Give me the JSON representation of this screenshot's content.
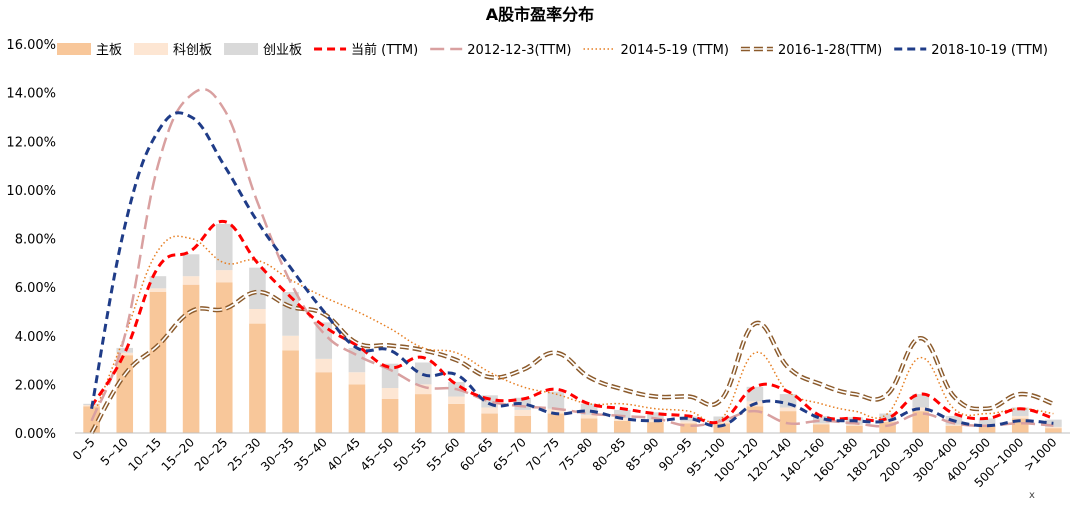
{
  "chart_data": {
    "type": "bar",
    "title": "A股市盈率分布",
    "xlabel": "",
    "ylabel": "",
    "ylim": [
      0,
      16
    ],
    "yticks": [
      "0.00%",
      "2.00%",
      "4.00%",
      "6.00%",
      "8.00%",
      "10.00%",
      "12.00%",
      "14.00%",
      "16.00%"
    ],
    "ytick_values": [
      0,
      2,
      4,
      6,
      8,
      10,
      12,
      14,
      16
    ],
    "grid": false,
    "legend_position": "top",
    "note": "x",
    "categories": [
      "0~5",
      "5~10",
      "10~15",
      "15~20",
      "20~25",
      "25~30",
      "30~35",
      "35~40",
      "40~45",
      "45~50",
      "50~55",
      "55~60",
      "60~65",
      "65~70",
      "70~75",
      "75~80",
      "80~85",
      "85~90",
      "90~95",
      "95~100",
      "100~120",
      "120~140",
      "140~160",
      "160~180",
      "180~200",
      "200~300",
      "300~400",
      "400~500",
      "500~1000",
      ">1000"
    ],
    "bar_series": [
      {
        "name": "主板",
        "color": "#F8C79A",
        "values": [
          1.1,
          3.2,
          5.8,
          6.1,
          6.2,
          4.5,
          3.4,
          2.5,
          2.0,
          1.4,
          1.6,
          1.2,
          0.8,
          0.7,
          0.8,
          0.6,
          0.5,
          0.45,
          0.4,
          0.4,
          1.1,
          0.9,
          0.35,
          0.3,
          0.45,
          0.9,
          0.3,
          0.25,
          0.6,
          0.2
        ]
      },
      {
        "name": "科创板",
        "color": "#FDE6D3",
        "values": [
          0.05,
          0.1,
          0.15,
          0.35,
          0.5,
          0.6,
          0.6,
          0.55,
          0.5,
          0.45,
          0.4,
          0.3,
          0.25,
          0.25,
          0.2,
          0.15,
          0.12,
          0.1,
          0.08,
          0.08,
          0.2,
          0.15,
          0.05,
          0.05,
          0.05,
          0.15,
          0.05,
          0.05,
          0.1,
          0.05
        ]
      },
      {
        "name": "创业板",
        "color": "#D9D9D9",
        "values": [
          0.05,
          0.2,
          0.5,
          0.9,
          1.9,
          1.7,
          1.8,
          1.5,
          1.0,
          1.0,
          0.9,
          0.6,
          0.5,
          0.5,
          0.7,
          0.45,
          0.33,
          0.3,
          0.2,
          0.2,
          0.6,
          0.55,
          0.3,
          0.3,
          0.3,
          0.55,
          0.35,
          0.3,
          0.35,
          0.3
        ]
      }
    ],
    "line_series": [
      {
        "name": "当前 (TTM)",
        "color": "#FF0000",
        "style": "bold-dash",
        "values": [
          1.1,
          3.3,
          6.8,
          7.5,
          8.7,
          7.0,
          5.6,
          4.4,
          3.6,
          2.7,
          3.1,
          2.0,
          1.4,
          1.4,
          1.8,
          1.2,
          1.0,
          0.8,
          0.7,
          0.5,
          1.9,
          1.7,
          0.7,
          0.6,
          0.6,
          1.6,
          0.8,
          0.6,
          1.0,
          0.6
        ]
      },
      {
        "name": "2012-12-3(TTM)",
        "color": "#D9A0A0",
        "style": "long-dash",
        "values": [
          0.5,
          4.0,
          11.0,
          13.9,
          13.3,
          9.5,
          6.2,
          4.1,
          3.2,
          2.6,
          1.9,
          1.8,
          1.3,
          1.1,
          1.0,
          0.8,
          0.7,
          0.6,
          0.3,
          0.5,
          0.9,
          0.4,
          0.5,
          0.4,
          0.3,
          0.8,
          0.4,
          0.3,
          0.4,
          0.3
        ]
      },
      {
        "name": "2014-5-19 (TTM)",
        "color": "#E67E22",
        "style": "dot",
        "values": [
          0.5,
          4.0,
          7.5,
          8.0,
          7.0,
          7.1,
          6.3,
          5.6,
          5.0,
          4.3,
          3.5,
          3.3,
          2.5,
          1.9,
          1.6,
          1.2,
          1.2,
          1.0,
          0.9,
          0.6,
          3.3,
          1.7,
          1.2,
          0.9,
          0.8,
          3.1,
          1.0,
          0.8,
          1.0,
          0.8
        ]
      },
      {
        "name": "2016-1-28(TTM)",
        "color": "#8B5A2B",
        "style": "outlined-dash",
        "values": [
          0.0,
          2.4,
          3.6,
          5.0,
          5.1,
          5.8,
          5.2,
          4.9,
          3.7,
          3.6,
          3.4,
          3.0,
          2.3,
          2.6,
          3.3,
          2.3,
          1.8,
          1.5,
          1.5,
          1.4,
          4.5,
          2.7,
          2.0,
          1.6,
          1.6,
          3.9,
          1.5,
          1.0,
          1.6,
          1.2
        ]
      },
      {
        "name": "2018-10-19 (TTM)",
        "color": "#1F3C88",
        "style": "bold-dash",
        "values": [
          1.0,
          8.5,
          12.4,
          13.0,
          11.0,
          8.7,
          6.8,
          5.0,
          3.5,
          3.4,
          2.4,
          2.4,
          1.2,
          1.2,
          0.8,
          0.9,
          0.6,
          0.5,
          0.6,
          0.3,
          1.2,
          1.2,
          0.6,
          0.5,
          0.5,
          1.0,
          0.5,
          0.3,
          0.5,
          0.4
        ]
      }
    ]
  }
}
